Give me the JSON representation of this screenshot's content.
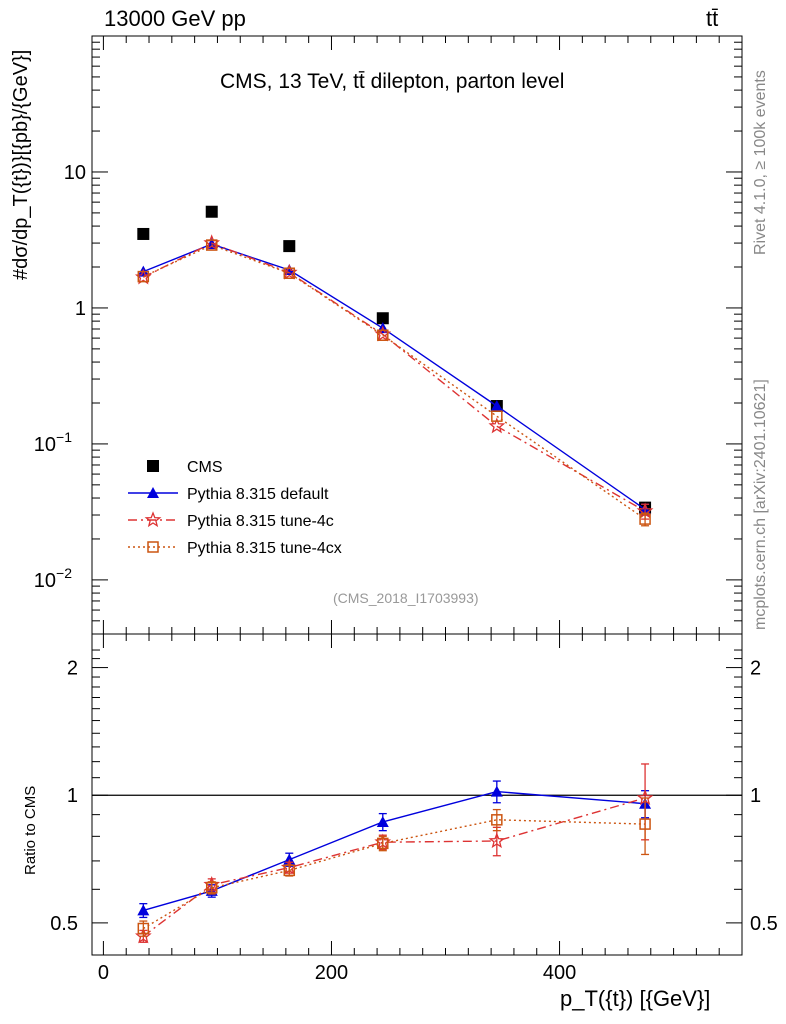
{
  "header": {
    "energy_label": "13000 GeV pp",
    "process_label": "tt̄",
    "plot_title": "CMS, 13 TeV, tt̄ dilepton, parton level",
    "analysis_id": "(CMS_2018_I1703993)"
  },
  "side_text": {
    "rivet_version": "Rivet 4.1.0, ≥ 100k events",
    "source": "mcplots.cern.ch [arXiv:2401.10621]"
  },
  "colors": {
    "cms": "#000000",
    "default": "#0000dd",
    "tune4c": "#dd3333",
    "tune4cx": "#cc5511",
    "reference_line": "#000000"
  },
  "chart_data": [
    {
      "panel": "main",
      "type": "line",
      "yscale": "log",
      "title": "CMS, 13 TeV, tt̄ dilepton, parton level",
      "xlabel": "p_T({t}) [{GeV}]",
      "ylabel": "#dσ/dp_T({t})}[{pb}/{GeV}]",
      "xlim": [
        -10,
        560
      ],
      "ylim": [
        0.004,
        100
      ],
      "x_ticks": [
        0,
        200,
        400
      ],
      "y_ticks": [
        {
          "value": 0.01,
          "label": "10",
          "sup": "−2"
        },
        {
          "value": 0.1,
          "label": "10",
          "sup": "−1"
        },
        {
          "value": 1,
          "label": "1",
          "sup": ""
        },
        {
          "value": 10,
          "label": "10",
          "sup": ""
        }
      ],
      "legend_position": "middle-left",
      "x": [
        35,
        95,
        163,
        245,
        345,
        475
      ],
      "series": [
        {
          "name": "CMS",
          "key": "cms",
          "marker": "square",
          "line": "none",
          "values": [
            3.5,
            5.1,
            2.85,
            0.84,
            0.19,
            0.034
          ],
          "errors": [
            0,
            0,
            0,
            0,
            0,
            0
          ]
        },
        {
          "name": "Pythia 8.315 default",
          "key": "default",
          "marker": "triangle",
          "line": "solid",
          "values": [
            1.85,
            2.95,
            1.9,
            0.71,
            0.19,
            0.033
          ],
          "errors": [
            0,
            0,
            0,
            0,
            0,
            0.003
          ]
        },
        {
          "name": "Pythia 8.315 tune-4c",
          "key": "tune4c",
          "marker": "star",
          "line": "dashdot",
          "values": [
            1.68,
            3.0,
            1.82,
            0.64,
            0.135,
            0.032
          ],
          "errors": [
            0,
            0,
            0,
            0,
            0,
            0.004
          ]
        },
        {
          "name": "Pythia 8.315 tune-4cx",
          "key": "tune4cx",
          "marker": "open-square",
          "line": "dotted",
          "values": [
            1.7,
            2.9,
            1.8,
            0.63,
            0.16,
            0.028
          ],
          "errors": [
            0,
            0,
            0,
            0,
            0,
            0.003
          ]
        }
      ]
    },
    {
      "panel": "ratio",
      "type": "line",
      "yscale": "log",
      "ylabel": "Ratio to CMS",
      "xlabel": "p_T({t}) [{GeV}]",
      "xlim": [
        -10,
        560
      ],
      "ylim": [
        0.42,
        2.4
      ],
      "x_ticks": [
        0,
        200,
        400
      ],
      "y_ticks": [
        {
          "value": 0.5,
          "label": "0.5"
        },
        {
          "value": 1,
          "label": "1"
        },
        {
          "value": 2,
          "label": "2"
        }
      ],
      "reference_line": 1,
      "x": [
        35,
        95,
        163,
        245,
        345,
        475
      ],
      "series": [
        {
          "name": "Pythia 8.315 default",
          "key": "default",
          "marker": "triangle",
          "line": "solid",
          "values": [
            0.535,
            0.595,
            0.705,
            0.865,
            1.02,
            0.955
          ],
          "errors": [
            0.02,
            0.02,
            0.025,
            0.04,
            0.06,
            0.07
          ]
        },
        {
          "name": "Pythia 8.315 tune-4c",
          "key": "tune4c",
          "marker": "star",
          "line": "dashdot",
          "values": [
            0.465,
            0.615,
            0.675,
            0.775,
            0.78,
            0.985
          ],
          "errors": [
            0.015,
            0.02,
            0.02,
            0.03,
            0.06,
            0.2
          ]
        },
        {
          "name": "Pythia 8.315 tune-4cx",
          "key": "tune4cx",
          "marker": "open-square",
          "line": "dotted",
          "values": [
            0.485,
            0.605,
            0.665,
            0.77,
            0.875,
            0.855
          ],
          "errors": [
            0.02,
            0.02,
            0.02,
            0.03,
            0.05,
            0.13
          ]
        }
      ]
    }
  ]
}
